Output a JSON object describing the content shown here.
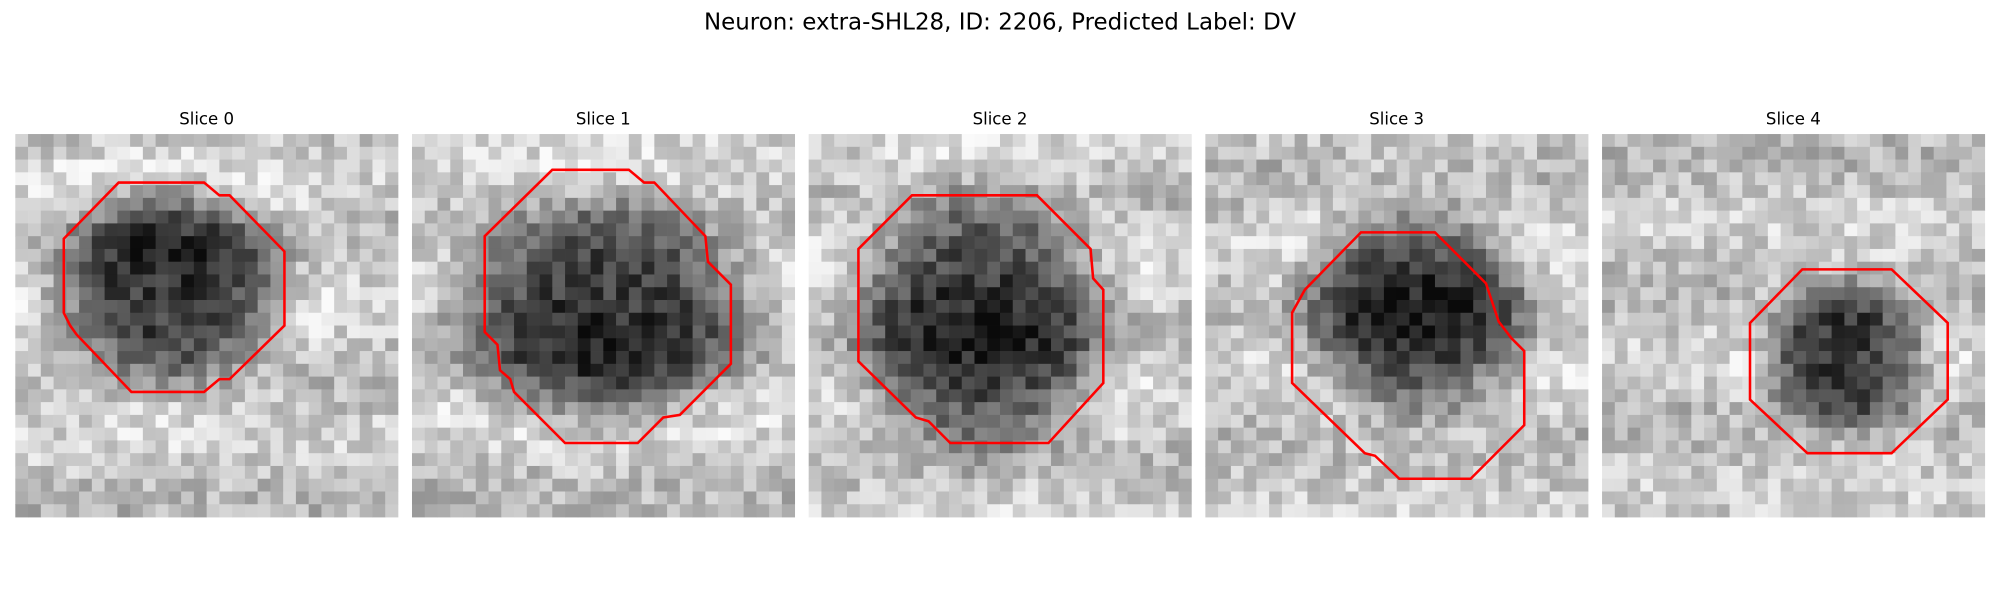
{
  "header": {
    "title": "Neuron: extra-SHL28, ID: 2206, Predicted Label: DV"
  },
  "panels": [
    {
      "title": "Slice 0"
    },
    {
      "title": "Slice 1"
    },
    {
      "title": "Slice 2"
    },
    {
      "title": "Slice 3"
    },
    {
      "title": "Slice 4"
    }
  ]
}
